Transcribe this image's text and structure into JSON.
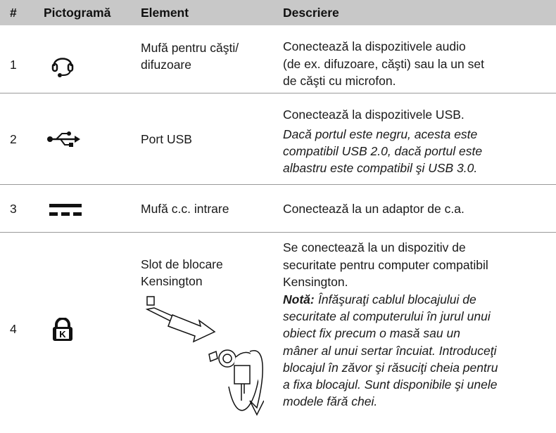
{
  "table": {
    "header": [
      "#",
      "Pictogramă",
      "Element",
      "Descriere"
    ],
    "rows": [
      {
        "number": "1",
        "element": [
          "Mufă pentru căşti/",
          "difuzoare"
        ],
        "description": [
          "Conectează la dispozitivele audio",
          "(de ex. difuzoare, căşti) sau la un set",
          "de căşti cu microfon."
        ]
      },
      {
        "number": "2",
        "element": [
          "Port USB"
        ],
        "description": [
          "Conectează la dispozitivele USB."
        ],
        "note": [
          "Dacă portul este negru, acesta este",
          "compatibil USB 2.0, dacă portul este",
          "albastru este compatibil şi USB 3.0."
        ]
      },
      {
        "number": "3",
        "element": [
          "Mufă c.c. intrare"
        ],
        "description": [
          "Conectează la un adaptor de c.a."
        ]
      },
      {
        "number": "4",
        "element": [
          "Slot de blocare",
          "Kensington"
        ],
        "description": [
          "Se conectează la un dispozitiv de",
          "securitate pentru computer compatibil",
          "Kensington."
        ],
        "note_label": "Notă:",
        "note": [
          "Înfăşuraţi cablul blocajului de",
          "securitate al computerului în jurul unui",
          "obiect fix precum o masă sau un",
          "mâner al unui sertar încuiat. Introduceţi",
          "blocajul în zăvor şi răsuciţi cheia pentru",
          "a fixa blocajul. Sunt disponibile şi unele",
          "modele fără chei."
        ]
      }
    ]
  }
}
